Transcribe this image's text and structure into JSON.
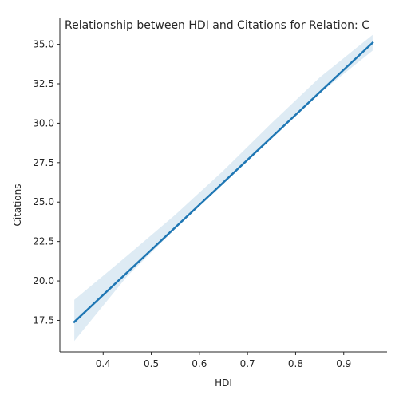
{
  "chart_data": {
    "type": "line",
    "title": "Relationship between HDI and Citations for Relation: C",
    "xlabel": "HDI",
    "ylabel": "Citations",
    "xlim": [
      0.31,
      0.99
    ],
    "ylim": [
      15.5,
      36.7
    ],
    "xticks": [
      "0.4",
      "0.5",
      "0.6",
      "0.7",
      "0.8",
      "0.9"
    ],
    "yticks": [
      "17.5",
      "20.0",
      "22.5",
      "25.0",
      "27.5",
      "30.0",
      "32.5",
      "35.0"
    ],
    "grid": false,
    "series": [
      {
        "kind": "regression-line",
        "color": "#1f77b4",
        "x": [
          0.34,
          0.96
        ],
        "y": [
          17.4,
          35.1
        ]
      }
    ],
    "confidence_band": {
      "color": "#1f77b4",
      "x": [
        0.34,
        0.45,
        0.55,
        0.65,
        0.75,
        0.85,
        0.96
      ],
      "lower": [
        16.2,
        20.3,
        23.3,
        26.2,
        29.0,
        31.9,
        34.6
      ],
      "upper": [
        18.8,
        21.6,
        24.2,
        27.0,
        30.0,
        32.9,
        35.6
      ]
    }
  }
}
